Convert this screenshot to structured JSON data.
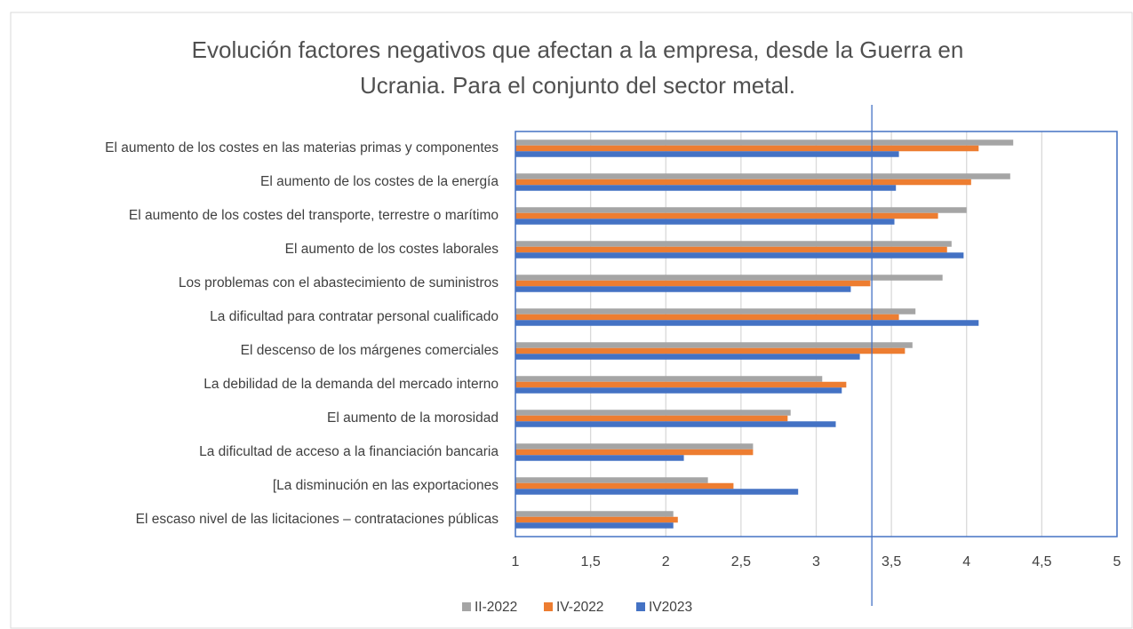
{
  "chart_data": {
    "type": "barh",
    "title": [
      "Evolución factores negativos que afectan a la empresa, desde la Guerra en",
      "Ucrania. Para el conjunto del sector metal."
    ],
    "categories": [
      "El aumento de los costes en las materias primas y componentes",
      "El aumento de los costes de la energía",
      "El aumento de los costes del transporte, terrestre o marítimo",
      "El aumento de los costes laborales",
      "Los problemas con el abastecimiento de suministros",
      "La dificultad para contratar personal cualificado",
      "El descenso de los márgenes comerciales",
      "La debilidad de la demanda del mercado interno",
      "El aumento de la morosidad",
      "La dificultad de acceso a la financiación bancaria",
      "[La disminución en las exportaciones",
      "El escaso nivel de las licitaciones – contrataciones públicas"
    ],
    "series": [
      {
        "name": "II-2022",
        "color": "#a5a5a5",
        "values": [
          4.31,
          4.29,
          4.0,
          3.9,
          3.84,
          3.66,
          3.64,
          3.04,
          2.83,
          2.58,
          2.28,
          2.05
        ]
      },
      {
        "name": "IV-2022",
        "color": "#ed7d31",
        "values": [
          4.08,
          4.03,
          3.81,
          3.87,
          3.36,
          3.55,
          3.59,
          3.2,
          2.81,
          2.58,
          2.45,
          2.08
        ]
      },
      {
        "name": "IV2023",
        "color": "#4472c4",
        "values": [
          3.55,
          3.53,
          3.52,
          3.98,
          3.23,
          4.08,
          3.29,
          3.17,
          3.13,
          2.12,
          2.88,
          2.05
        ]
      }
    ],
    "xlim": [
      1,
      5
    ],
    "xticks": [
      1,
      {
        "value": 1.5,
        "label": "1,5"
      },
      2,
      {
        "value": 2.5,
        "label": "2,5"
      },
      3,
      {
        "value": 3.5,
        "label": "3,5"
      },
      4,
      {
        "value": 4.5,
        "label": "4,5"
      },
      5
    ],
    "reference_line": 3.37,
    "grid": true,
    "legend": "bottom"
  }
}
